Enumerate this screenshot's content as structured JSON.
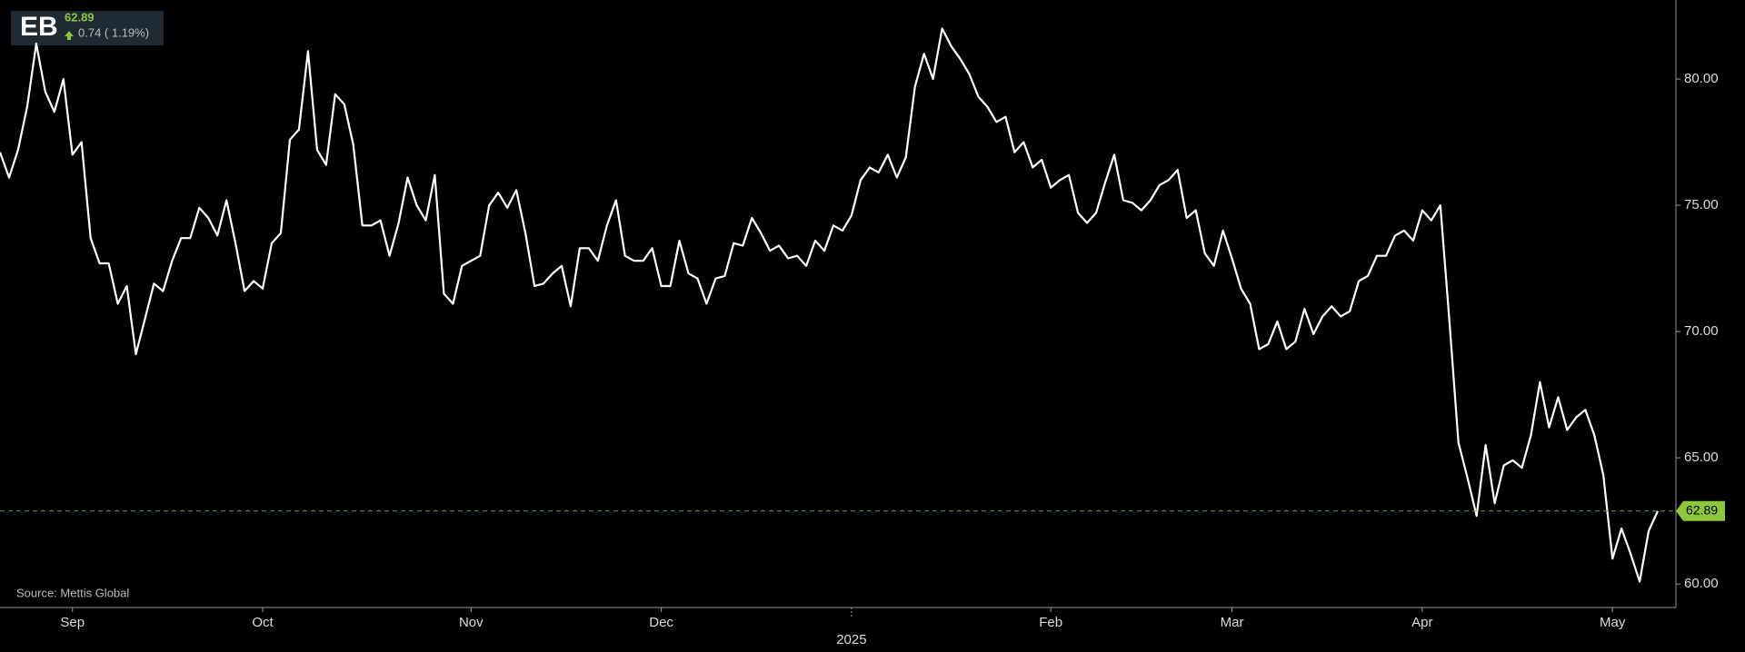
{
  "chart_data": {
    "type": "line",
    "ticker": "EB",
    "change_text": "0.74 ( 1.19%)",
    "source": "Source: Mettis Global",
    "categories": [
      null,
      null,
      null,
      null,
      null,
      null,
      null,
      null,
      "Sep",
      null,
      null,
      null,
      null,
      null,
      null,
      null,
      null,
      null,
      null,
      null,
      null,
      null,
      null,
      null,
      null,
      null,
      null,
      null,
      null,
      "Oct",
      null,
      null,
      null,
      null,
      null,
      null,
      null,
      null,
      null,
      null,
      null,
      null,
      null,
      null,
      null,
      null,
      null,
      null,
      null,
      null,
      null,
      null,
      "Nov",
      null,
      null,
      null,
      null,
      null,
      null,
      null,
      null,
      null,
      null,
      null,
      null,
      null,
      null,
      null,
      null,
      null,
      null,
      null,
      null,
      "Dec",
      null,
      null,
      null,
      null,
      null,
      null,
      null,
      null,
      null,
      null,
      null,
      null,
      null,
      null,
      null,
      null,
      null,
      null,
      null,
      null,
      "2025",
      null,
      null,
      null,
      null,
      null,
      null,
      null,
      null,
      null,
      null,
      null,
      null,
      null,
      null,
      null,
      null,
      null,
      null,
      null,
      null,
      null,
      "Feb",
      null,
      null,
      null,
      null,
      null,
      null,
      null,
      null,
      null,
      null,
      null,
      null,
      null,
      null,
      null,
      null,
      null,
      null,
      null,
      "Mar",
      null,
      null,
      null,
      null,
      null,
      null,
      null,
      null,
      null,
      null,
      null,
      null,
      null,
      null,
      null,
      null,
      null,
      null,
      null,
      null,
      "Apr",
      null,
      null,
      null,
      null,
      null,
      null,
      null,
      null,
      null,
      null,
      null,
      null,
      null,
      null,
      null,
      null,
      null,
      null,
      null,
      null,
      "May",
      null,
      null,
      null,
      null,
      null
    ],
    "series": [
      {
        "color": "#ffffff",
        "values": [
          77.1,
          76.1,
          77.2,
          78.9,
          81.4,
          79.5,
          78.7,
          80.0,
          77.0,
          77.5,
          73.7,
          72.7,
          72.7,
          71.1,
          71.8,
          69.1,
          70.5,
          71.9,
          71.6,
          72.8,
          73.7,
          73.7,
          74.9,
          74.5,
          73.8,
          75.2,
          73.5,
          71.6,
          72.0,
          71.7,
          73.5,
          73.9,
          77.6,
          78.0,
          81.1,
          77.2,
          76.6,
          79.4,
          79.0,
          77.4,
          74.2,
          74.2,
          74.4,
          73.0,
          74.3,
          76.1,
          75.0,
          74.4,
          76.2,
          71.5,
          71.1,
          72.6,
          72.8,
          73.0,
          75.0,
          75.5,
          74.9,
          75.6,
          73.9,
          71.8,
          71.9,
          72.3,
          72.6,
          71.0,
          73.3,
          73.3,
          72.8,
          74.2,
          75.2,
          73.0,
          72.8,
          72.8,
          73.3,
          71.8,
          71.8,
          73.6,
          72.3,
          72.1,
          71.1,
          72.1,
          72.2,
          73.5,
          73.4,
          74.5,
          73.9,
          73.2,
          73.4,
          72.9,
          73.0,
          72.6,
          73.6,
          73.2,
          74.2,
          74.0,
          74.6,
          76.0,
          76.5,
          76.3,
          77.0,
          76.1,
          76.9,
          79.7,
          81.0,
          80.0,
          82.0,
          81.3,
          80.8,
          80.2,
          79.3,
          78.9,
          78.3,
          78.5,
          77.1,
          77.5,
          76.5,
          76.8,
          75.7,
          76.0,
          76.2,
          74.7,
          74.3,
          74.7,
          75.9,
          77.0,
          75.2,
          75.1,
          74.8,
          75.2,
          75.8,
          76.0,
          76.4,
          74.5,
          74.8,
          73.1,
          72.6,
          74.0,
          72.9,
          71.7,
          71.1,
          69.3,
          69.5,
          70.4,
          69.3,
          69.6,
          70.9,
          69.9,
          70.6,
          71.0,
          70.6,
          70.8,
          72.0,
          72.2,
          73.0,
          73.0,
          73.8,
          74.0,
          73.6,
          74.8,
          74.4,
          75.0,
          70.4,
          65.6,
          64.2,
          62.7,
          65.5,
          63.2,
          64.7,
          64.9,
          64.6,
          65.9,
          68.0,
          66.2,
          67.4,
          66.1,
          66.6,
          66.9,
          65.9,
          64.3,
          61.0,
          62.2,
          61.2,
          60.1,
          62.1,
          62.89
        ]
      }
    ],
    "ylim": [
      59.07,
      83.13
    ],
    "yticks": [
      {
        "value": 60,
        "label": "60.00"
      },
      {
        "value": 65,
        "label": "65.00"
      },
      {
        "value": 70,
        "label": "70.00"
      },
      {
        "value": 75,
        "label": "75.00"
      },
      {
        "value": 80,
        "label": "80.00"
      }
    ],
    "price_color": "#8dc63f"
  }
}
